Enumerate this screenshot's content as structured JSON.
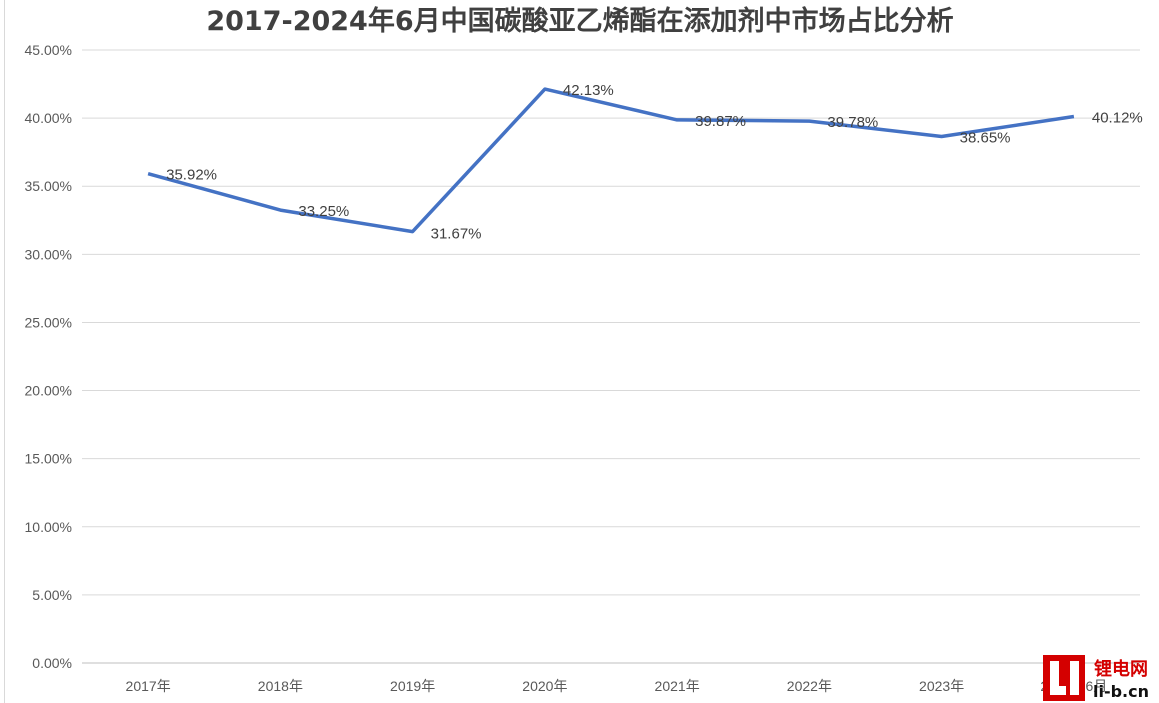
{
  "chart_data": {
    "type": "line",
    "title": "2017-2024年6月中国碳酸亚乙烯酯在添加剂中市场占比分析",
    "categories": [
      "2017年",
      "2018年",
      "2019年",
      "2020年",
      "2021年",
      "2022年",
      "2023年",
      "2024年6月"
    ],
    "series": [
      {
        "values": [
          35.92,
          33.25,
          31.67,
          42.13,
          39.87,
          39.78,
          38.65,
          40.12
        ],
        "labels": [
          "35.92%",
          "33.25%",
          "31.67%",
          "42.13%",
          "39.87%",
          "39.78%",
          "38.65%",
          "40.12%"
        ]
      }
    ],
    "ylim": [
      0,
      45
    ],
    "yticks": [
      "0.00%",
      "5.00%",
      "10.00%",
      "15.00%",
      "20.00%",
      "25.00%",
      "30.00%",
      "35.00%",
      "40.00%",
      "45.00%"
    ],
    "xlabel": "",
    "ylabel": "",
    "grid": true,
    "line_color": "#4472C4"
  },
  "watermark": {
    "logo_char": "Li",
    "name": "锂电网",
    "domain": "li-b.cn",
    "color": "#d40000"
  }
}
